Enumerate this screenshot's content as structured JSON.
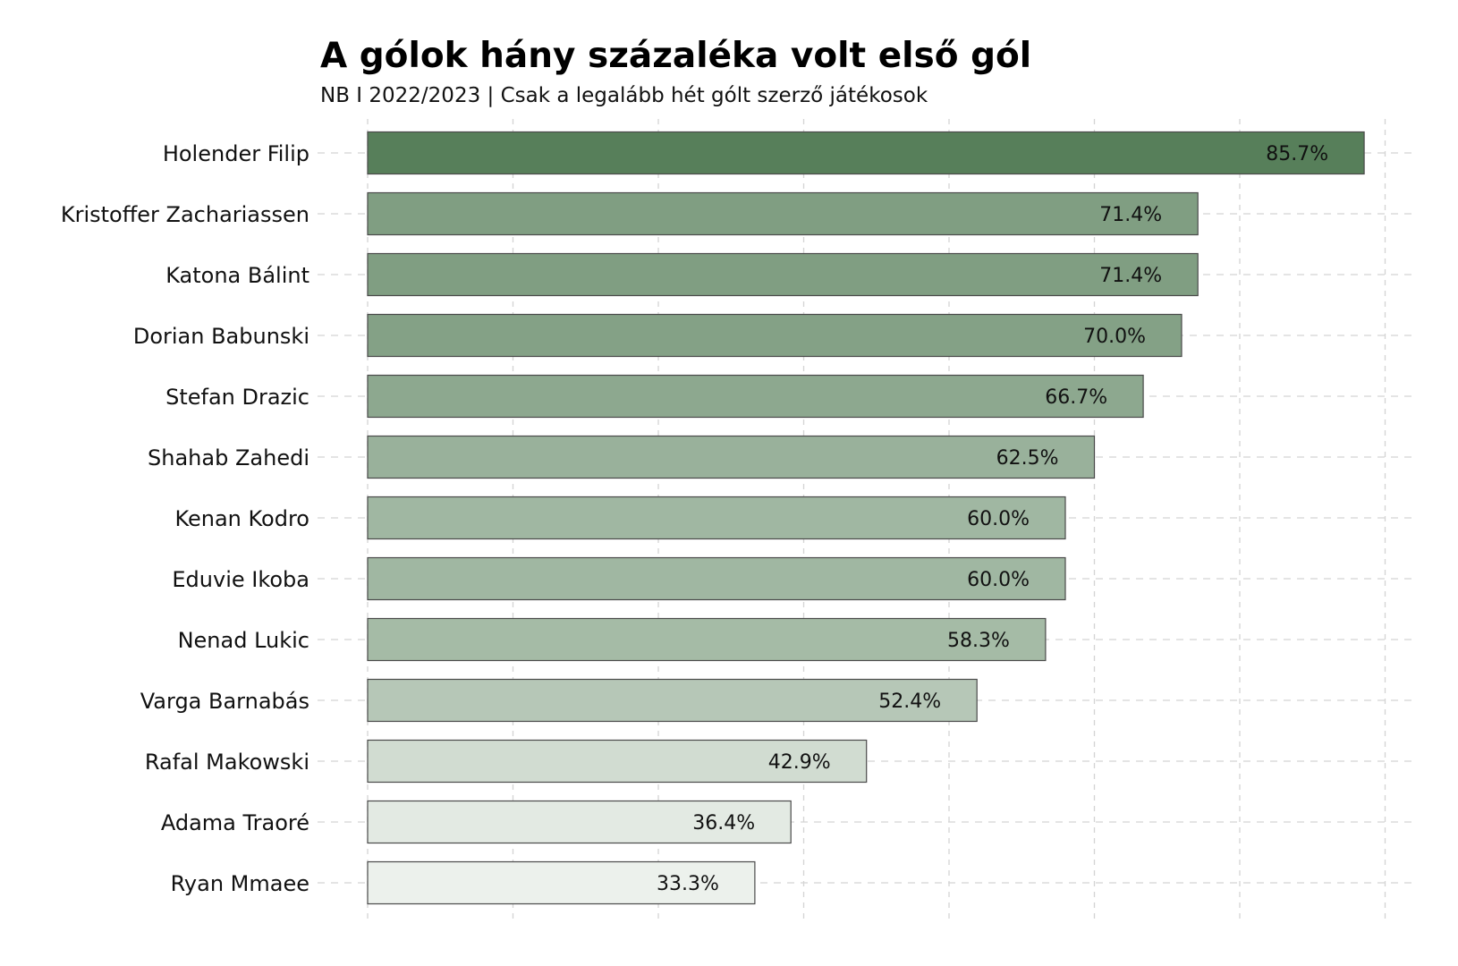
{
  "chart_data": {
    "type": "bar",
    "orientation": "horizontal",
    "title": "A gólok hány százaléka volt első gól",
    "subtitle": "NB I 2022/2023 | Csak a legalább hét gólt szerző játékosok",
    "xlabel": "",
    "ylabel": "",
    "xlim": [
      0,
      90
    ],
    "grid": true,
    "categories": [
      "Holender Filip",
      "Kristoffer Zachariassen",
      "Katona Bálint",
      "Dorian Babunski",
      "Stefan Drazic",
      "Shahab Zahedi",
      "Kenan Kodro",
      "Eduvie Ikoba",
      "Nenad Lukic",
      "Varga Barnabás",
      "Rafal Makowski",
      "Adama Traoré",
      "Ryan Mmaee"
    ],
    "values": [
      85.7,
      71.4,
      71.4,
      70.0,
      66.7,
      62.5,
      60.0,
      60.0,
      58.3,
      52.4,
      42.9,
      36.4,
      33.3
    ],
    "value_labels": [
      "85.7%",
      "71.4%",
      "71.4%",
      "70.0%",
      "66.7%",
      "62.5%",
      "60.0%",
      "60.0%",
      "58.3%",
      "52.4%",
      "42.9%",
      "36.4%",
      "33.3%"
    ],
    "colors": {
      "high": "#577f5a",
      "low": "#ecf1ec",
      "bar_border": "#4a4a4a",
      "grid": "#d4d4d4"
    }
  }
}
